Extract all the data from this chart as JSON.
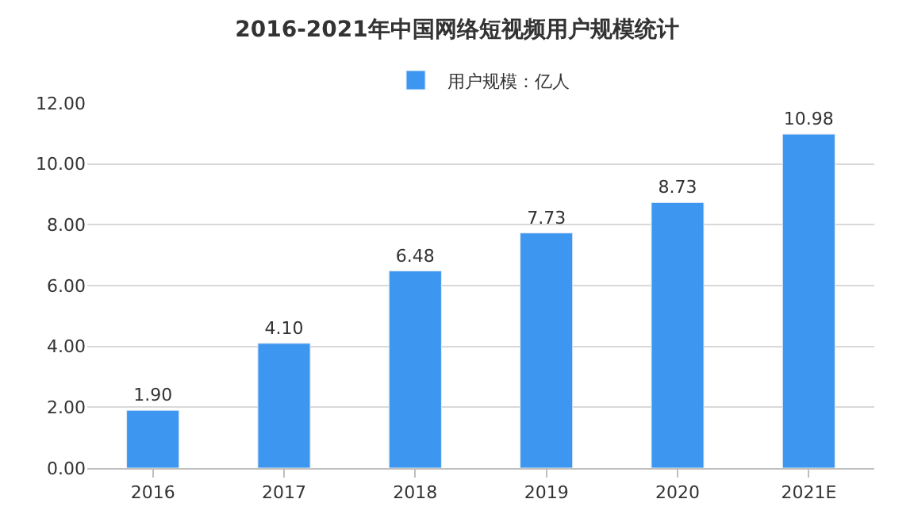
{
  "chart_data": {
    "type": "bar",
    "title": "2016-2021年中国网络短视频用户规模统计",
    "categories": [
      "2016",
      "2017",
      "2018",
      "2019",
      "2020",
      "2021E"
    ],
    "series": [
      {
        "name": "用户规模：亿人",
        "color": "#3d96f0",
        "values": [
          1.9,
          4.1,
          6.48,
          7.73,
          8.73,
          10.98
        ],
        "value_labels": [
          "1.90",
          "4.10",
          "6.48",
          "7.73",
          "8.73",
          "10.98"
        ]
      }
    ],
    "ylim": [
      0,
      12
    ],
    "yticks": [
      {
        "value": 0,
        "label": "0.00"
      },
      {
        "value": 2,
        "label": "2.00"
      },
      {
        "value": 4,
        "label": "4.00"
      },
      {
        "value": 6,
        "label": "6.00"
      },
      {
        "value": 8,
        "label": "8.00"
      },
      {
        "value": 10,
        "label": "10.00"
      },
      {
        "value": 12,
        "label": "12.00"
      }
    ],
    "grid": "y",
    "legend": "top"
  }
}
